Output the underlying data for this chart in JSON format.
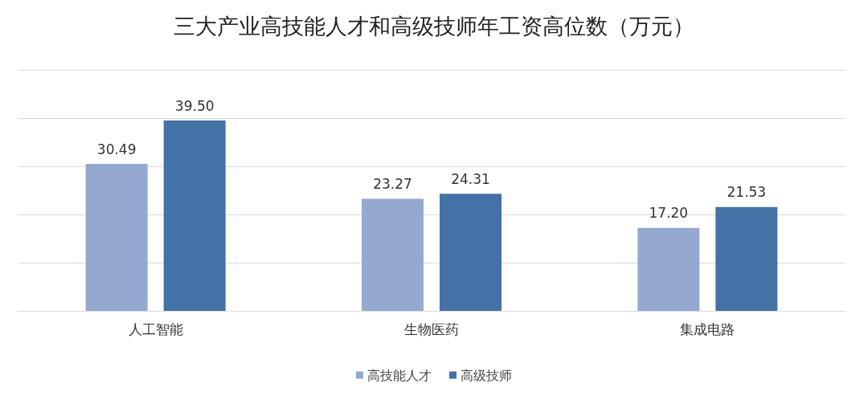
{
  "chart_data": {
    "type": "bar",
    "title": "三大产业高技能人才和高级技师年工资高位数（万元）",
    "categories": [
      "人工智能",
      "生物医药",
      "集成电路"
    ],
    "series": [
      {
        "name": "高技能人才",
        "color": "#95a9d0",
        "values": [
          30.49,
          23.27,
          17.2
        ],
        "value_labels": [
          "30.49",
          "23.27",
          "17.20"
        ]
      },
      {
        "name": "高级技师",
        "color": "#4472a6",
        "values": [
          39.5,
          24.31,
          21.53
        ],
        "value_labels": [
          "39.50",
          "24.31",
          "21.53"
        ]
      }
    ],
    "ylim": [
      0,
      50
    ],
    "yticks": [
      0,
      10,
      20,
      30,
      40,
      50
    ],
    "grid": "y",
    "legend": "bottom",
    "tick_labels": "x"
  }
}
